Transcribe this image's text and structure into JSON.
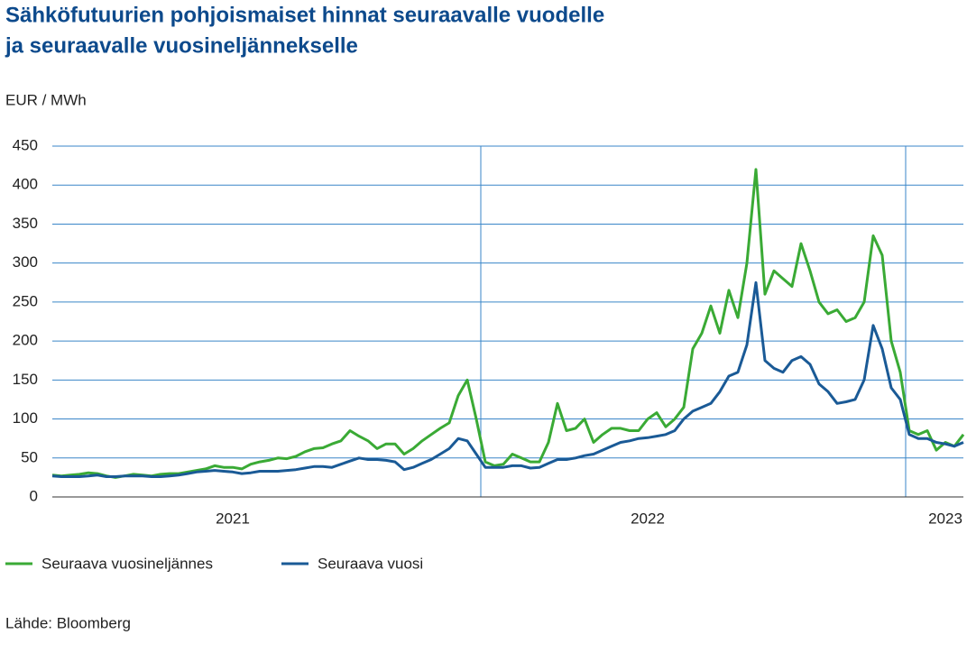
{
  "chart_data": {
    "type": "line",
    "title": "Sähköfutuurien pohjoismaiset hinnat seuraavalle vuodelle",
    "subtitle": "ja seuraavalle vuosineljännekselle",
    "y_label": "EUR / MWh",
    "source": "Lähde: Bloomberg",
    "categories": [
      null,
      null,
      null,
      null,
      null,
      null,
      null,
      null,
      null,
      null,
      null,
      null,
      null,
      null,
      null,
      null,
      null,
      null,
      null,
      null,
      "2021",
      null,
      null,
      null,
      null,
      null,
      null,
      null,
      null,
      null,
      null,
      null,
      null,
      null,
      null,
      null,
      null,
      null,
      null,
      null,
      null,
      null,
      null,
      null,
      null,
      null,
      null,
      null,
      null,
      null,
      null,
      null,
      null,
      null,
      null,
      null,
      null,
      null,
      null,
      null,
      null,
      null,
      null,
      null,
      null,
      null,
      "2022",
      null,
      null,
      null,
      null,
      null,
      null,
      null,
      null,
      null,
      null,
      null,
      null,
      null,
      null,
      null,
      null,
      null,
      null,
      null,
      null,
      null,
      null,
      null,
      null,
      null,
      null,
      null,
      null,
      null,
      null,
      null,
      null,
      "2023",
      null,
      null
    ],
    "series": [
      {
        "name": "Seuraava vuosineljännes",
        "color": "#3aaa35",
        "values": [
          28,
          27,
          28,
          29,
          31,
          30,
          27,
          25,
          27,
          29,
          28,
          27,
          29,
          30,
          30,
          32,
          34,
          36,
          40,
          38,
          38,
          36,
          42,
          45,
          47,
          50,
          49,
          52,
          58,
          62,
          63,
          68,
          72,
          85,
          78,
          72,
          62,
          68,
          68,
          55,
          62,
          72,
          80,
          88,
          95,
          130,
          150,
          100,
          45,
          40,
          42,
          55,
          50,
          45,
          45,
          70,
          120,
          85,
          88,
          100,
          70,
          80,
          88,
          88,
          85,
          85,
          100,
          108,
          90,
          100,
          115,
          190,
          210,
          245,
          210,
          265,
          230,
          300,
          420,
          260,
          290,
          280,
          270,
          325,
          290,
          250,
          235,
          240,
          225,
          230,
          250,
          335,
          310,
          200,
          160,
          85,
          80,
          85,
          60,
          70,
          65,
          80
        ]
      },
      {
        "name": "Seuraava vuosi",
        "color": "#1a5a96",
        "values": [
          27,
          26,
          26,
          26,
          27,
          28,
          26,
          26,
          27,
          27,
          27,
          26,
          26,
          27,
          28,
          30,
          32,
          33,
          34,
          33,
          32,
          30,
          31,
          33,
          33,
          33,
          34,
          35,
          37,
          39,
          39,
          38,
          42,
          46,
          50,
          48,
          48,
          47,
          45,
          35,
          38,
          43,
          48,
          55,
          62,
          75,
          72,
          55,
          38,
          38,
          38,
          40,
          40,
          37,
          38,
          43,
          48,
          48,
          50,
          53,
          55,
          60,
          65,
          70,
          72,
          75,
          76,
          78,
          80,
          85,
          100,
          110,
          115,
          120,
          135,
          155,
          160,
          195,
          275,
          175,
          165,
          160,
          175,
          180,
          170,
          145,
          135,
          120,
          122,
          125,
          150,
          220,
          190,
          140,
          125,
          80,
          75,
          75,
          70,
          68,
          65,
          70
        ]
      }
    ],
    "ylim": [
      0,
      450
    ],
    "yticks": [
      0,
      50,
      100,
      150,
      200,
      250,
      300,
      350,
      400,
      450
    ],
    "grid": true,
    "legend": "bottom"
  }
}
